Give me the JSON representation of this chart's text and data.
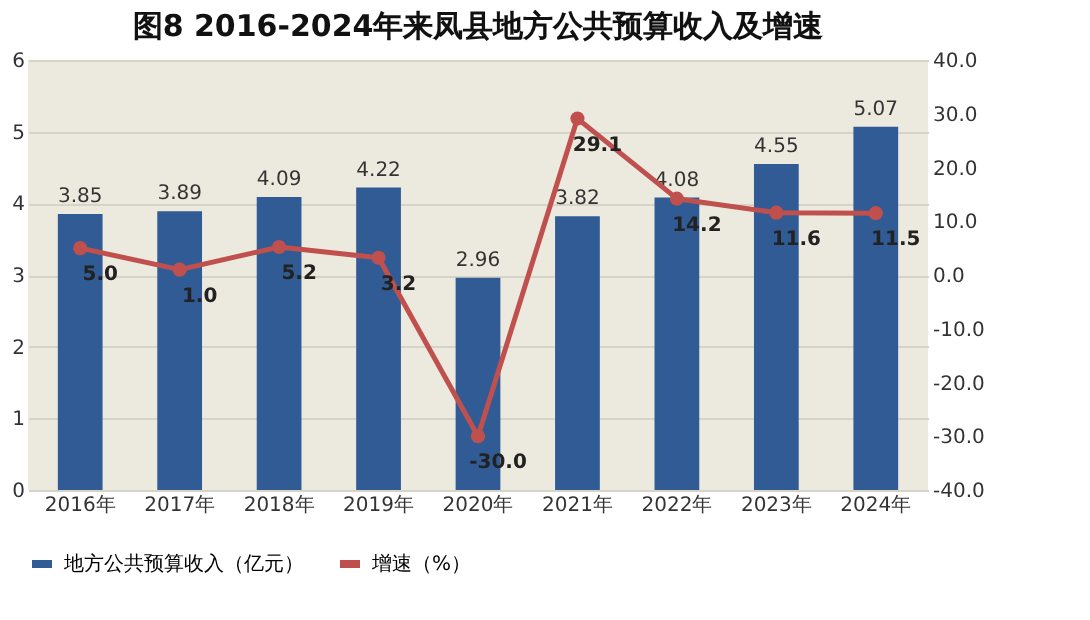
{
  "chart_data": {
    "type": "bar",
    "title": "图8  2016-2024年来凤县地方公共预算收入及增速",
    "categories": [
      "2016年",
      "2017年",
      "2018年",
      "2019年",
      "2020年",
      "2021年",
      "2022年",
      "2023年",
      "2024年"
    ],
    "series": [
      {
        "name": "地方公共预算收入（亿元）",
        "color": "#315b95",
        "values": [
          3.85,
          3.89,
          4.09,
          4.22,
          2.96,
          3.82,
          4.08,
          4.55,
          5.07
        ]
      },
      {
        "name": "增速（%）",
        "type": "line",
        "axis": "y2",
        "color": "#c0504d",
        "marker": "circle",
        "values": [
          5.0,
          1.0,
          5.2,
          3.2,
          -30.0,
          29.1,
          14.2,
          11.6,
          11.5
        ],
        "value_labels": [
          "5.0",
          "1.0",
          "5.2",
          "3.2",
          "-30.0",
          "29.1",
          "14.2",
          "11.6",
          "11.5"
        ]
      }
    ],
    "ylim": [
      0,
      6
    ],
    "yticks": [
      0,
      1,
      2,
      3,
      4,
      5,
      6
    ],
    "y2lim": [
      -40,
      40
    ],
    "y2ticks": [
      {
        "value": -40,
        "label": "-40.0"
      },
      {
        "value": -30,
        "label": "-30.0"
      },
      {
        "value": -20,
        "label": "-20.0"
      },
      {
        "value": -10,
        "label": "-10.0"
      },
      {
        "value": 0,
        "label": "0.0"
      },
      {
        "value": 10,
        "label": "10.0"
      },
      {
        "value": 20,
        "label": "20.0"
      },
      {
        "value": 30,
        "label": "30.0"
      },
      {
        "value": 40,
        "label": "40.0"
      }
    ],
    "grid": "y",
    "legend": "bottom",
    "data_labels": true
  }
}
